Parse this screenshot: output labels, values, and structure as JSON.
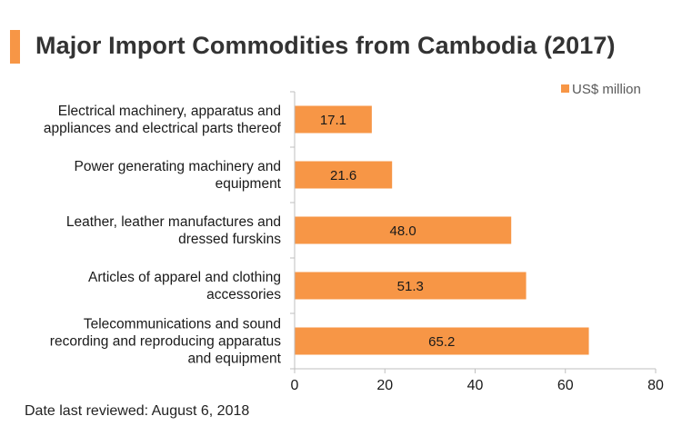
{
  "header": {
    "title": "Major Import Commodities from Cambodia (2017)"
  },
  "footer": {
    "note": "Date last reviewed: August 6, 2018"
  },
  "colors": {
    "accent": "#F79646",
    "bar": "#F79646",
    "axis": "#BFBFBF",
    "title_text": "#333333"
  },
  "chart_data": {
    "type": "bar",
    "orientation": "horizontal",
    "title": "Major Import Commodities from Cambodia (2017)",
    "categories": [
      [
        "Electrical machinery, apparatus and",
        "appliances and electrical parts thereof"
      ],
      [
        "Power generating machinery and",
        "equipment"
      ],
      [
        "Leather, leather manufactures and",
        "dressed furskins"
      ],
      [
        "Articles of apparel and clothing",
        "accessories"
      ],
      [
        "Telecommunications and sound",
        "recording and reproducing apparatus",
        "and equipment"
      ]
    ],
    "series": [
      {
        "name": "US$ million",
        "values": [
          17.1,
          21.6,
          48.0,
          51.3,
          65.2
        ],
        "value_labels": [
          "17.1",
          "21.6",
          "48.0",
          "51.3",
          "65.2"
        ]
      }
    ],
    "xlim": [
      0,
      80
    ],
    "xticks": [
      0,
      20,
      40,
      60,
      80
    ],
    "grid": false,
    "legend_position": "top-right"
  }
}
